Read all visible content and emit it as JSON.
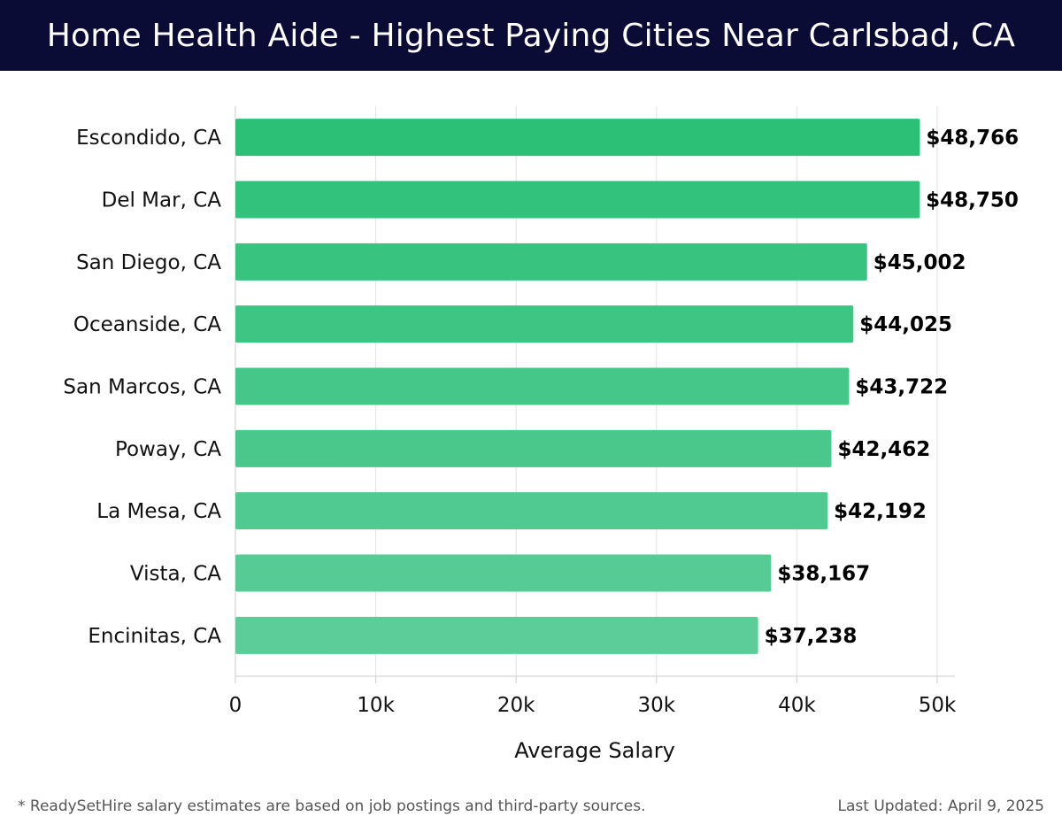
{
  "header": {
    "title": "Home Health Aide - Highest Paying Cities Near Carlsbad, CA"
  },
  "chart_data": {
    "type": "bar",
    "orientation": "horizontal",
    "categories": [
      "Escondido, CA",
      "Del Mar, CA",
      "San Diego, CA",
      "Oceanside, CA",
      "San Marcos, CA",
      "Poway, CA",
      "La Mesa, CA",
      "Vista, CA",
      "Encinitas, CA"
    ],
    "values": [
      48766,
      48750,
      45002,
      44025,
      43722,
      42462,
      42192,
      38167,
      37238
    ],
    "value_labels": [
      "$48,766",
      "$48,750",
      "$45,002",
      "$44,025",
      "$43,722",
      "$42,462",
      "$42,192",
      "$38,167",
      "$37,238"
    ],
    "xlabel": "Average Salary",
    "xlim": [
      0,
      50000
    ],
    "x_ticks": [
      0,
      10000,
      20000,
      30000,
      40000,
      50000
    ],
    "x_tick_labels": [
      "0",
      "10k",
      "20k",
      "30k",
      "40k",
      "50k"
    ],
    "grid": true,
    "bar_color_top": "#2cc077",
    "bar_color_bottom": "#5ccd98"
  },
  "footer": {
    "note": "* ReadySetHire salary estimates are based on job postings and third-party sources.",
    "updated": "Last Updated: April 9, 2025"
  }
}
